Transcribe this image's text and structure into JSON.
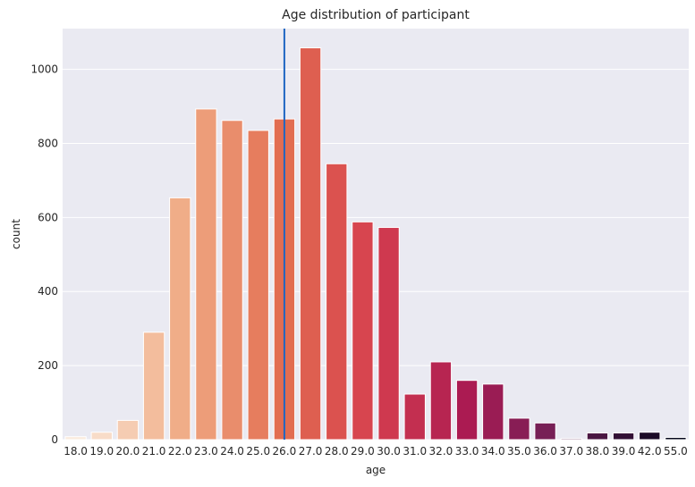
{
  "chart_data": {
    "type": "bar",
    "title": "Age distribution of participant",
    "xlabel": "age",
    "ylabel": "count",
    "categories": [
      "18.0",
      "19.0",
      "20.0",
      "21.0",
      "22.0",
      "23.0",
      "24.0",
      "25.0",
      "26.0",
      "27.0",
      "28.0",
      "29.0",
      "30.0",
      "31.0",
      "32.0",
      "33.0",
      "34.0",
      "35.0",
      "36.0",
      "37.0",
      "38.0",
      "39.0",
      "42.0",
      "55.0"
    ],
    "values": [
      8,
      20,
      52,
      290,
      653,
      893,
      862,
      835,
      866,
      1058,
      745,
      588,
      573,
      123,
      210,
      160,
      150,
      58,
      45,
      3,
      18,
      18,
      20,
      6
    ],
    "ylim": [
      0,
      1110
    ],
    "yticks": [
      0,
      200,
      400,
      600,
      800,
      1000
    ],
    "grid": true,
    "background": "#eaeaf2",
    "palette": "rocket_r",
    "vline": {
      "x": "26.0",
      "color": "#1f66c2"
    }
  }
}
